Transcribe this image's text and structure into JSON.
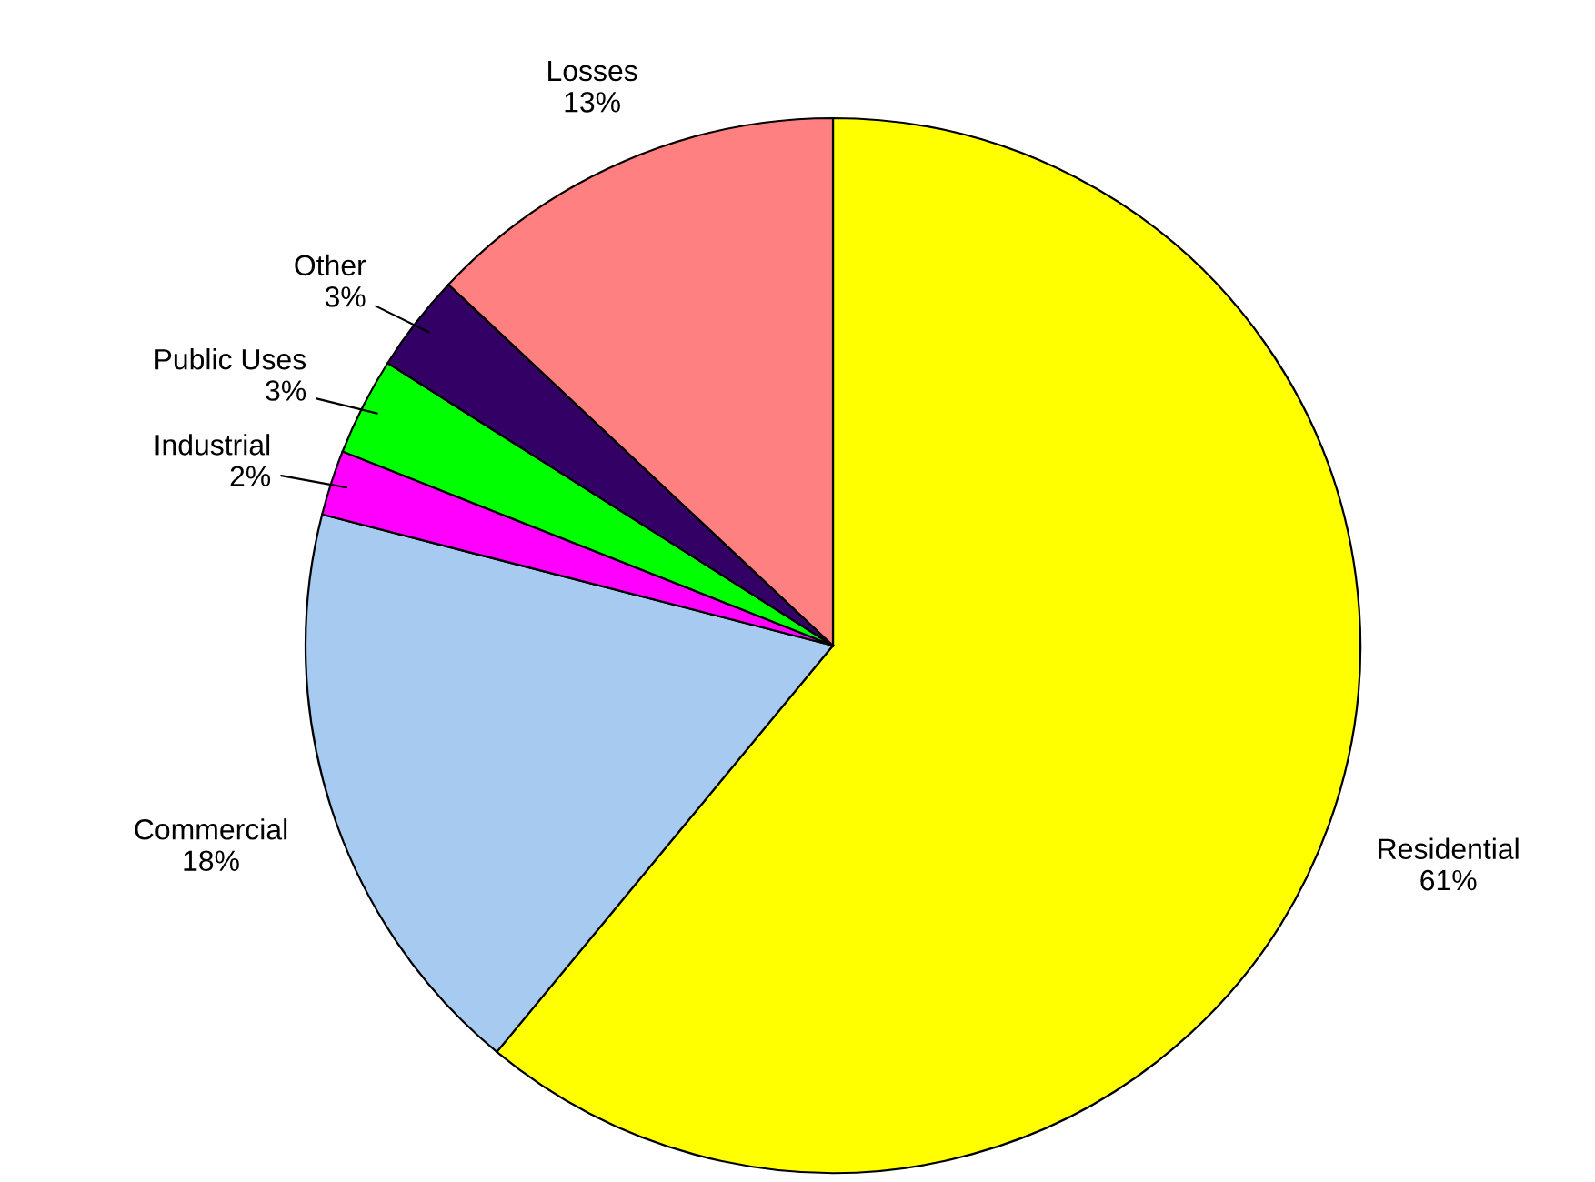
{
  "chart_data": {
    "type": "pie",
    "categories": [
      "Residential",
      "Commercial",
      "Industrial",
      "Public Uses",
      "Other",
      "Losses"
    ],
    "values": [
      61,
      18,
      2,
      3,
      3,
      13
    ],
    "value_labels": [
      "61%",
      "18%",
      "2%",
      "3%",
      "3%",
      "13%"
    ],
    "colors": [
      "#ffff00",
      "#a6caf0",
      "#ff00ff",
      "#00ff00",
      "#330066",
      "#ff8080"
    ]
  }
}
